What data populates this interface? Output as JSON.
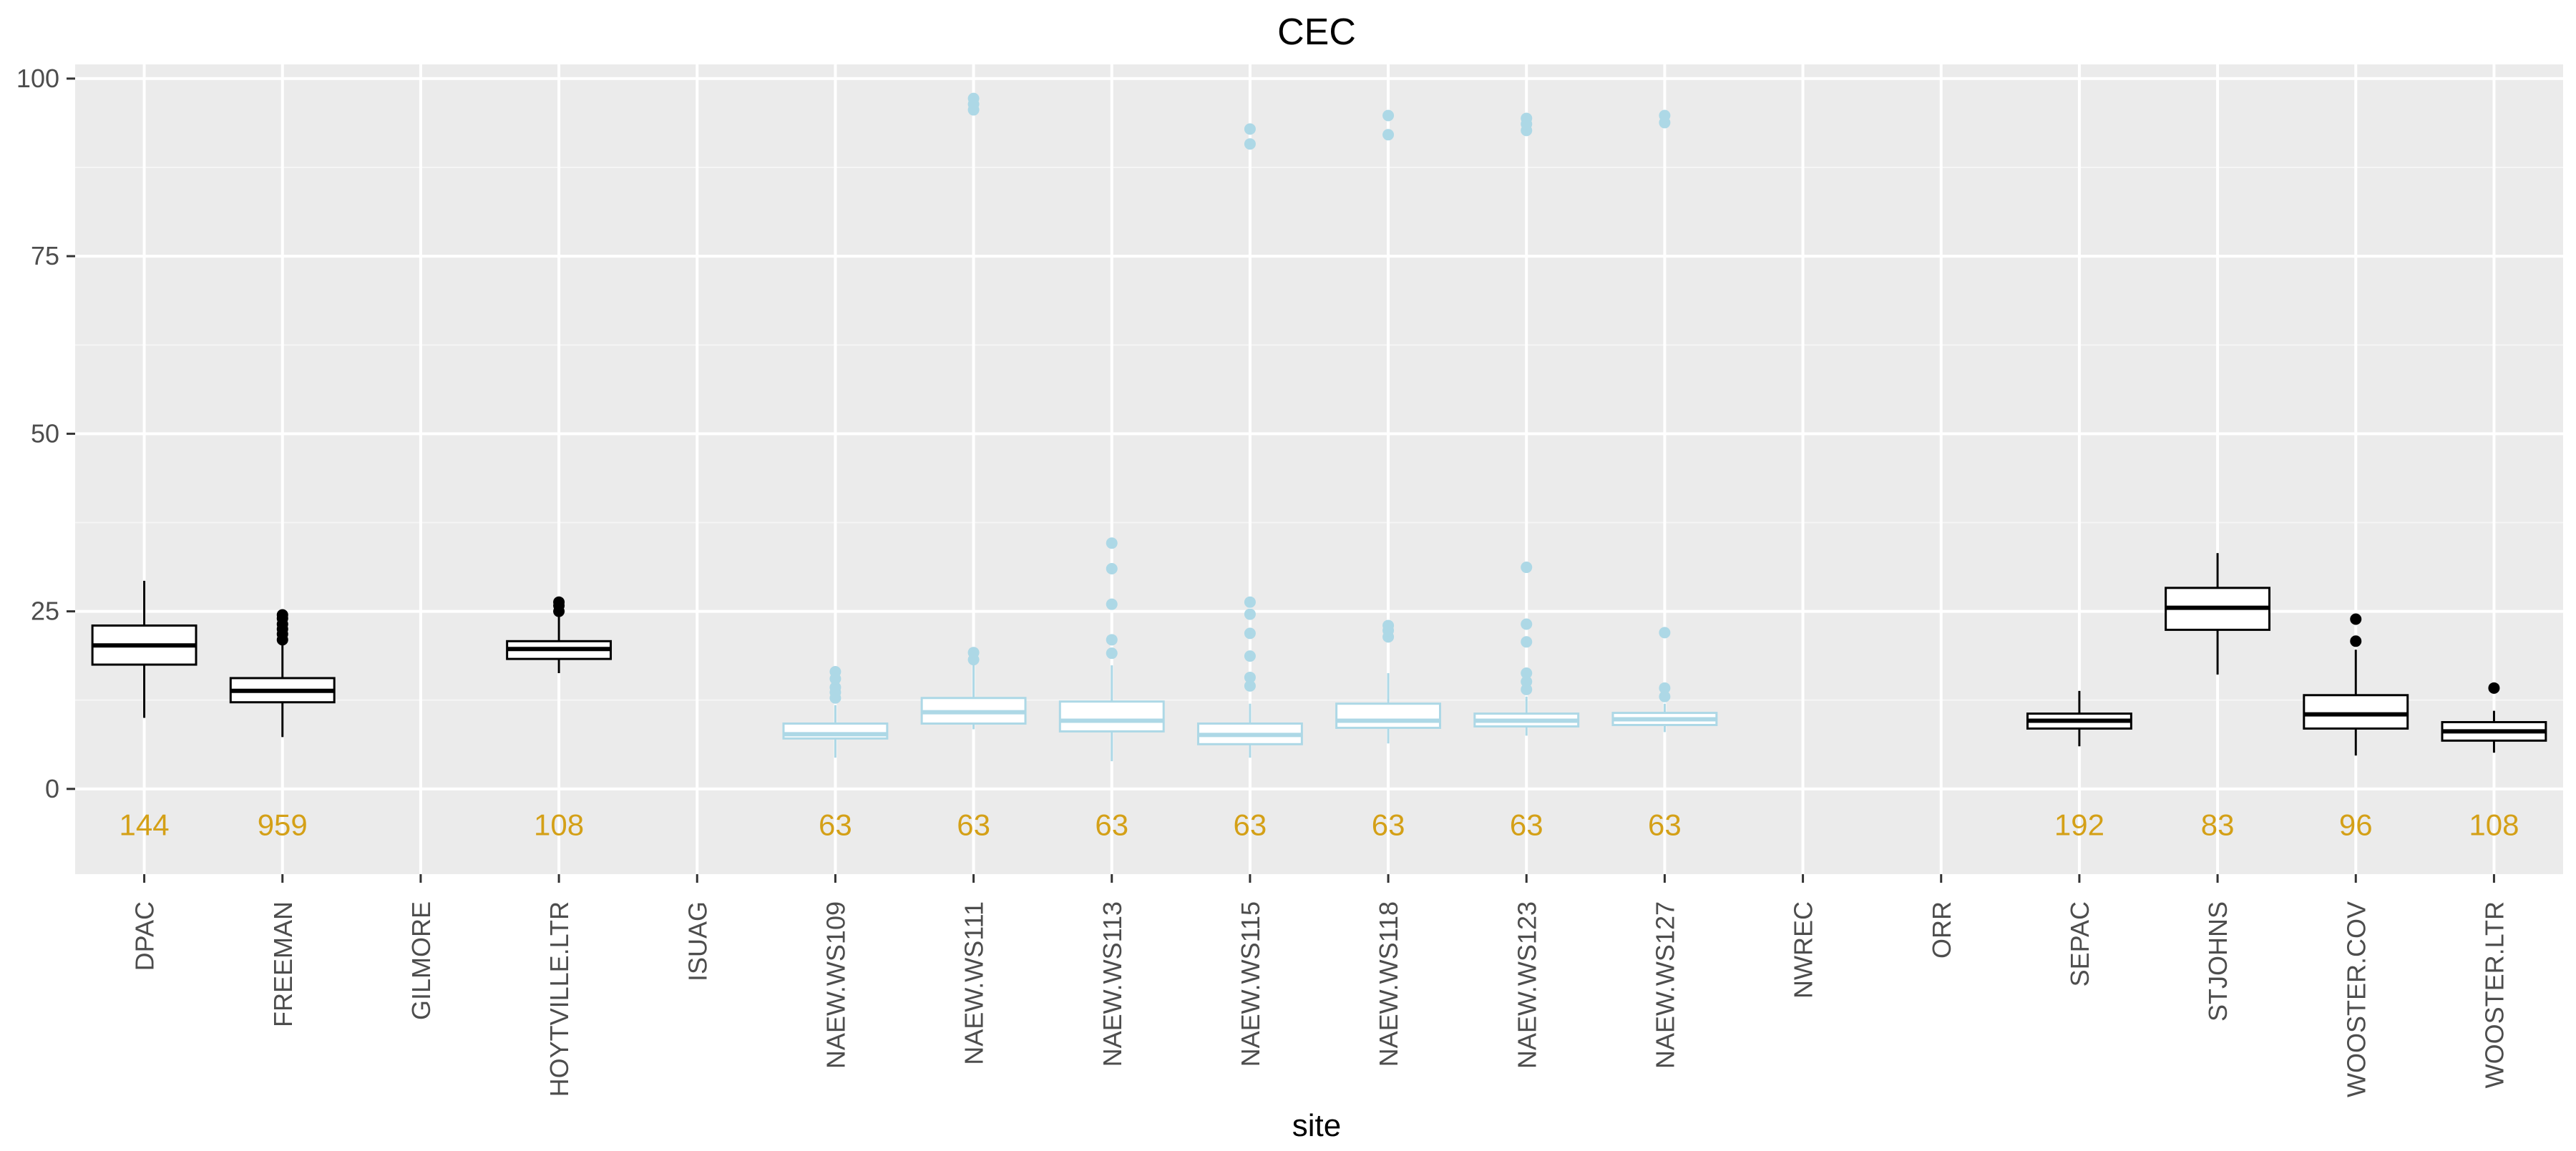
{
  "chart_data": {
    "type": "boxplot",
    "title": "CEC",
    "xlabel": "site",
    "ylabel": "",
    "ylim": [
      -12,
      102
    ],
    "yticks": [
      0,
      25,
      50,
      75,
      100
    ],
    "grid": true,
    "legend": "none",
    "colors": {
      "panel_bg": "#ebebeb",
      "grid_major": "#ffffff",
      "grid_minor": "#f5f5f5",
      "box_black": "#000000",
      "box_blue": "#add8e6",
      "count_label": "#d4a017",
      "tick_text": "#4d4d4d"
    },
    "categories": [
      "DPAC",
      "FREEMAN",
      "GILMORE",
      "HOYTVILLE.LTR",
      "ISUAG",
      "NAEW.WS109",
      "NAEW.WS111",
      "NAEW.WS113",
      "NAEW.WS115",
      "NAEW.WS118",
      "NAEW.WS123",
      "NAEW.WS127",
      "NWREC",
      "ORR",
      "SEPAC",
      "STJOHNS",
      "WOOSTER.COV",
      "WOOSTER.LTR"
    ],
    "boxes": [
      {
        "site": "DPAC",
        "color": "black",
        "whisker_low": 10,
        "q1": 17.5,
        "median": 20.2,
        "q3": 23,
        "whisker_high": 29.3,
        "outliers": [],
        "n": "144"
      },
      {
        "site": "FREEMAN",
        "color": "black",
        "whisker_low": 7.3,
        "q1": 12.2,
        "median": 13.8,
        "q3": 15.6,
        "whisker_high": 20.4,
        "outliers": [
          21,
          21.8,
          22.5,
          23.2,
          24,
          24.5
        ],
        "n": "959"
      },
      {
        "site": "HOYTVILLE.LTR",
        "color": "black",
        "whisker_low": 16.3,
        "q1": 18.3,
        "median": 19.7,
        "q3": 20.8,
        "whisker_high": 24.2,
        "outliers": [
          25,
          25.8,
          26.3
        ],
        "n": "108"
      },
      {
        "site": "NAEW.WS109",
        "color": "blue",
        "whisker_low": 4.4,
        "q1": 7.1,
        "median": 7.7,
        "q3": 9.2,
        "whisker_high": 11.8,
        "outliers": [
          12.8,
          13.6,
          14.3,
          15.5,
          16.5
        ],
        "n": "63"
      },
      {
        "site": "NAEW.WS111",
        "color": "blue",
        "whisker_low": 8.4,
        "q1": 9.2,
        "median": 10.8,
        "q3": 12.8,
        "whisker_high": 17.5,
        "outliers": [
          18.2,
          19.2,
          95.6,
          96.4,
          97.2
        ],
        "n": "63"
      },
      {
        "site": "NAEW.WS113",
        "color": "blue",
        "whisker_low": 3.9,
        "q1": 8.1,
        "median": 9.6,
        "q3": 12.3,
        "whisker_high": 17.4,
        "outliers": [
          19.1,
          21,
          26,
          31,
          34.6
        ],
        "n": "63"
      },
      {
        "site": "NAEW.WS115",
        "color": "blue",
        "whisker_low": 4.4,
        "q1": 6.3,
        "median": 7.6,
        "q3": 9.2,
        "whisker_high": 12,
        "outliers": [
          14.5,
          15.7,
          18.7,
          21.9,
          24.6,
          26.3,
          90.8,
          92.9
        ],
        "n": "63"
      },
      {
        "site": "NAEW.WS118",
        "color": "blue",
        "whisker_low": 6.4,
        "q1": 8.6,
        "median": 9.6,
        "q3": 12,
        "whisker_high": 16.3,
        "outliers": [
          21.4,
          22.3,
          23,
          92.1,
          94.8
        ],
        "n": "63"
      },
      {
        "site": "NAEW.WS123",
        "color": "blue",
        "whisker_low": 7.5,
        "q1": 8.8,
        "median": 9.6,
        "q3": 10.6,
        "whisker_high": 13,
        "outliers": [
          14,
          15.1,
          16.3,
          20.7,
          23.2,
          31.2,
          92.7,
          93.6,
          94.4
        ],
        "n": "63"
      },
      {
        "site": "NAEW.WS127",
        "color": "blue",
        "whisker_low": 8,
        "q1": 9,
        "median": 9.8,
        "q3": 10.7,
        "whisker_high": 12,
        "outliers": [
          13,
          14.2,
          22,
          93.8,
          94.8
        ],
        "n": "63"
      },
      {
        "site": "SEPAC",
        "color": "black",
        "whisker_low": 6,
        "q1": 8.5,
        "median": 9.6,
        "q3": 10.6,
        "whisker_high": 13.8,
        "outliers": [],
        "n": "192"
      },
      {
        "site": "STJOHNS",
        "color": "black",
        "whisker_low": 16.1,
        "q1": 22.4,
        "median": 25.5,
        "q3": 28.3,
        "whisker_high": 33.2,
        "outliers": [],
        "n": "83"
      },
      {
        "site": "WOOSTER.COV",
        "color": "black",
        "whisker_low": 4.7,
        "q1": 8.5,
        "median": 10.5,
        "q3": 13.2,
        "whisker_high": 19.6,
        "outliers": [
          20.8,
          23.9
        ],
        "n": "96"
      },
      {
        "site": "WOOSTER.LTR",
        "color": "black",
        "whisker_low": 5.1,
        "q1": 6.8,
        "median": 8.1,
        "q3": 9.4,
        "whisker_high": 11,
        "outliers": [
          14.2
        ],
        "n": "108"
      }
    ]
  }
}
